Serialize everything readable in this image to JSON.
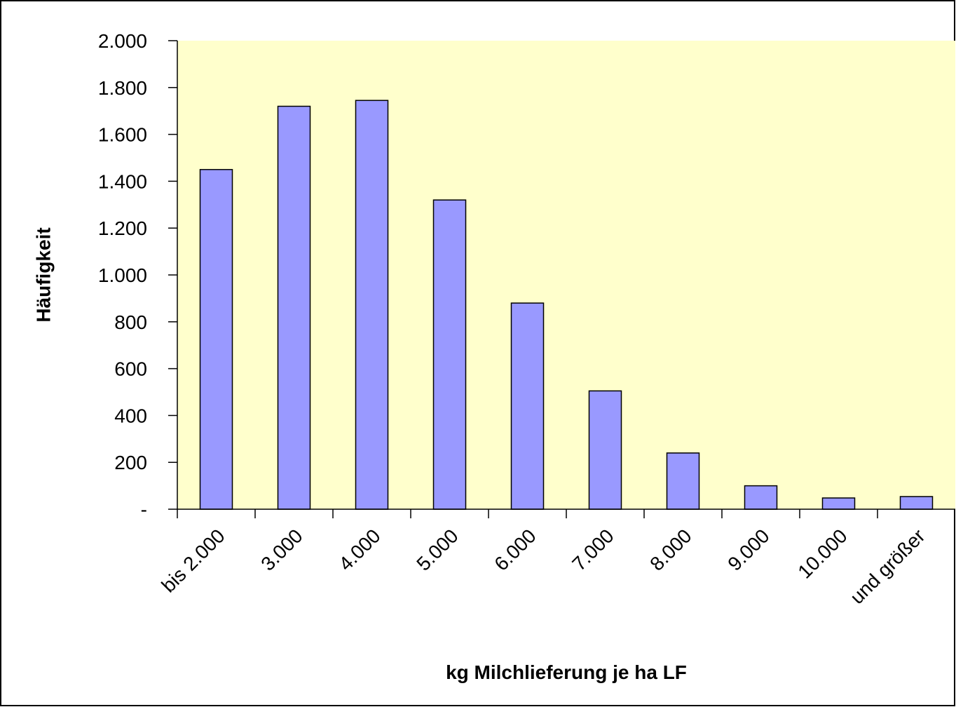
{
  "chart_data": {
    "type": "bar",
    "x_label": "kg Milchlieferung je ha LF",
    "y_label": "Häufigkeit",
    "categories": [
      "bis 2.000",
      "3.000",
      "4.000",
      "5.000",
      "6.000",
      "7.000",
      "8.000",
      "9.000",
      "10.000",
      "und größer"
    ],
    "values": [
      1450,
      1720,
      1745,
      1320,
      880,
      505,
      240,
      100,
      48,
      54
    ],
    "color": "#9999ff",
    "plot_background": "#ffffcc",
    "ylim": [
      0,
      2000
    ],
    "yticks": [
      {
        "value": 0,
        "label": "-"
      },
      200,
      400,
      600,
      800,
      {
        "value": 1000,
        "label": "1.000"
      },
      {
        "value": 1200,
        "label": "1.200"
      },
      {
        "value": 1400,
        "label": "1.400"
      },
      {
        "value": 1600,
        "label": "1.600"
      },
      {
        "value": 1800,
        "label": "1.800"
      },
      {
        "value": 2000,
        "label": "2.000"
      }
    ],
    "grid": false
  }
}
